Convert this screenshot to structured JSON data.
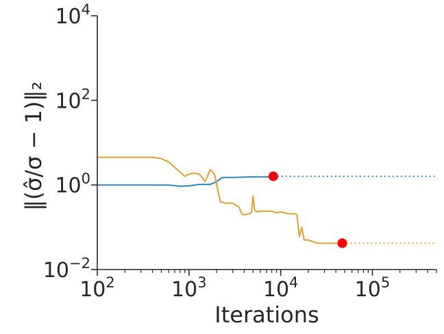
{
  "chart_data": {
    "type": "line",
    "title": "",
    "xlabel": "Iterations",
    "ylabel": "‖(σ̂/σ − 1)‖₂",
    "xscale": "log",
    "yscale": "log",
    "xlim": [
      100,
      500000
    ],
    "ylim": [
      0.01,
      10000
    ],
    "grid": false,
    "legend": "none",
    "x_ticks": [
      {
        "value": 100,
        "base": "10",
        "exp": "2"
      },
      {
        "value": 1000,
        "base": "10",
        "exp": "3"
      },
      {
        "value": 10000,
        "base": "10",
        "exp": "4"
      },
      {
        "value": 100000,
        "base": "10",
        "exp": "5"
      }
    ],
    "y_ticks": [
      {
        "value": 0.01,
        "base": "10",
        "exp": "−2"
      },
      {
        "value": 1,
        "base": "10",
        "exp": "0"
      },
      {
        "value": 100,
        "base": "10",
        "exp": "2"
      },
      {
        "value": 10000,
        "base": "10",
        "exp": "4"
      }
    ],
    "series": [
      {
        "color": "#2e86c1",
        "style": "solid",
        "x": [
          100,
          300,
          600,
          800,
          1000,
          1300,
          1700,
          2000,
          2300,
          3000,
          5000,
          7000,
          8300
        ],
        "y": [
          1.0,
          1.0,
          1.0,
          0.93,
          0.95,
          1.03,
          1.03,
          1.2,
          1.5,
          1.5,
          1.55,
          1.55,
          1.6
        ]
      },
      {
        "color": "#2e86c1",
        "style": "dotted",
        "x": [
          8300,
          480000
        ],
        "y": [
          1.6,
          1.6
        ]
      },
      {
        "color": "#e0a030",
        "style": "solid",
        "x": [
          100,
          200,
          400,
          500,
          600,
          800,
          900,
          1000,
          1100,
          1300,
          1500,
          1700,
          1900,
          2200,
          2500,
          3000,
          3500,
          3800,
          4200,
          4800,
          5000,
          5200,
          5600,
          6000,
          7000,
          8000,
          9000,
          10000,
          12000,
          14000,
          15000,
          16000,
          17000,
          18000,
          20000,
          25000,
          30000,
          40000,
          47000
        ],
        "y": [
          4.5,
          4.5,
          4.5,
          4.2,
          3.5,
          2.0,
          1.6,
          1.8,
          1.9,
          1.8,
          1.2,
          2.3,
          1.8,
          0.4,
          0.37,
          0.37,
          0.3,
          0.2,
          0.2,
          0.22,
          0.55,
          0.25,
          0.23,
          0.24,
          0.24,
          0.24,
          0.22,
          0.23,
          0.21,
          0.21,
          0.2,
          0.06,
          0.1,
          0.05,
          0.05,
          0.042,
          0.042,
          0.042,
          0.042
        ]
      },
      {
        "color": "#e0a030",
        "style": "dotted",
        "x": [
          47000,
          480000
        ],
        "y": [
          0.042,
          0.042
        ]
      }
    ],
    "markers": [
      {
        "x": 8300,
        "y": 1.6,
        "color": "#ff0000"
      },
      {
        "x": 47000,
        "y": 0.042,
        "color": "#ff0000"
      }
    ]
  }
}
